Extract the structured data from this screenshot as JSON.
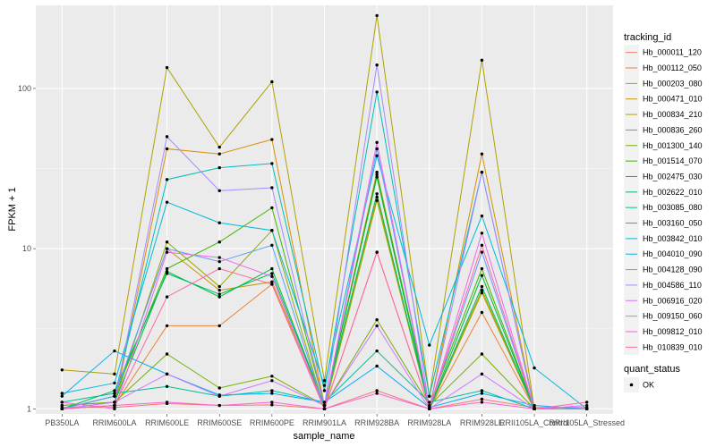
{
  "chart_data": {
    "type": "line",
    "xlabel": "sample_name",
    "ylabel": "FPKM + 1",
    "y_scale": "log10",
    "ylim": [
      0.93,
      330
    ],
    "y_ticks": [
      {
        "value": 1,
        "label": "1"
      },
      {
        "value": 10,
        "label": "10"
      },
      {
        "value": 100,
        "label": "100"
      }
    ],
    "categories": [
      "PB350LA",
      "RRIM600LA",
      "RRIM600LE",
      "RRIM600SE",
      "RRIM600PE",
      "RRIM901LA",
      "RRIM928BA",
      "RRIM928LA",
      "RRIM928LE",
      "RRII105LA_Control",
      "RRII105LA_Stressed"
    ],
    "legend_title": "tracking_id",
    "shape_legend_title": "quant_status",
    "shape_legend_item": "OK",
    "panel_background": "#ebebeb",
    "grid": true,
    "point_color": "#000000",
    "series": [
      {
        "name": "Hb_000011_120",
        "color": "#F8766D",
        "values": [
          1.02,
          1.02,
          1.08,
          1.05,
          1.06,
          1.0,
          1.3,
          1.0,
          1.15,
          1.02,
          1.02
        ]
      },
      {
        "name": "Hb_000112_050",
        "color": "#EC8239",
        "values": [
          1.0,
          1.05,
          3.3,
          3.3,
          6.0,
          1.0,
          9.5,
          1.0,
          4.0,
          1.0,
          1.0
        ]
      },
      {
        "name": "Hb_000203_080",
        "color": "#DB8E00",
        "values": [
          1.0,
          1.05,
          42,
          39,
          48,
          1.05,
          30,
          1.0,
          39,
          1.0,
          1.0
        ]
      },
      {
        "name": "Hb_000471_010",
        "color": "#C79800",
        "values": [
          1.0,
          1.2,
          10,
          5.5,
          6.2,
          1.05,
          21,
          1.0,
          5.3,
          1.0,
          1.0
        ]
      },
      {
        "name": "Hb_000834_210",
        "color": "#AFA100",
        "values": [
          1.75,
          1.65,
          135,
          43,
          110,
          1.5,
          285,
          1.2,
          150,
          1.0,
          1.0
        ]
      },
      {
        "name": "Hb_000836_260",
        "color": "#93AA00",
        "values": [
          1.05,
          1.1,
          11,
          5.8,
          13,
          1.0,
          20,
          1.0,
          5.5,
          1.0,
          1.0
        ]
      },
      {
        "name": "Hb_001300_140",
        "color": "#72B000",
        "values": [
          1.05,
          1.1,
          2.2,
          1.35,
          1.6,
          1.05,
          3.6,
          1.05,
          2.2,
          1.0,
          1.0
        ]
      },
      {
        "name": "Hb_001514_070",
        "color": "#3FB500",
        "values": [
          1.0,
          1.2,
          7.5,
          11,
          18,
          1.05,
          29,
          1.05,
          7.5,
          1.0,
          1.0
        ]
      },
      {
        "name": "Hb_002475_030",
        "color": "#00B938",
        "values": [
          1.0,
          1.1,
          7.2,
          5.0,
          7.5,
          1.05,
          28,
          1.0,
          6.8,
          1.0,
          1.0
        ]
      },
      {
        "name": "Hb_002622_010",
        "color": "#00BC6B",
        "values": [
          1.0,
          1.3,
          7.0,
          5.2,
          7.0,
          1.05,
          22,
          1.0,
          5.8,
          1.0,
          1.0
        ]
      },
      {
        "name": "Hb_003085_080",
        "color": "#00BD94",
        "values": [
          1.1,
          1.25,
          1.38,
          1.2,
          1.3,
          1.1,
          2.3,
          1.1,
          1.3,
          1.0,
          1.0
        ]
      },
      {
        "name": "Hb_003160_050",
        "color": "#00BDB8",
        "values": [
          1.0,
          1.2,
          27,
          32,
          34,
          1.3,
          95,
          1.2,
          30,
          1.0,
          1.0
        ]
      },
      {
        "name": "Hb_003842_010",
        "color": "#00B9D8",
        "values": [
          1.25,
          1.45,
          19.5,
          14.5,
          13,
          1.4,
          38,
          2.5,
          16,
          1.8,
          1.0
        ]
      },
      {
        "name": "Hb_004010_090",
        "color": "#00B0F6",
        "values": [
          1.2,
          2.3,
          1.65,
          1.22,
          1.25,
          1.1,
          1.85,
          1.02,
          1.25,
          1.05,
          1.0
        ]
      },
      {
        "name": "Hb_004128_090",
        "color": "#619CFF",
        "values": [
          1.0,
          1.2,
          10,
          8.3,
          10.5,
          1.0,
          42,
          1.0,
          9.5,
          1.0,
          1.0
        ]
      },
      {
        "name": "Hb_004586_110",
        "color": "#A58AFF",
        "values": [
          1.0,
          1.1,
          50,
          23,
          24,
          1.05,
          140,
          1.0,
          30,
          1.0,
          1.0
        ]
      },
      {
        "name": "Hb_006916_020",
        "color": "#D277FF",
        "values": [
          1.0,
          1.1,
          1.65,
          1.2,
          1.5,
          1.05,
          3.3,
          1.0,
          1.65,
          1.0,
          1.0
        ]
      },
      {
        "name": "Hb_009150_060",
        "color": "#ED68ED",
        "values": [
          1.1,
          1.0,
          9.5,
          8.8,
          6.7,
          1.0,
          46,
          1.0,
          12.5,
          1.0,
          1.05
        ]
      },
      {
        "name": "Hb_009812_010",
        "color": "#FB61D7",
        "values": [
          1.0,
          1.05,
          1.1,
          1.05,
          1.1,
          1.0,
          1.25,
          1.0,
          1.1,
          1.0,
          1.0
        ]
      },
      {
        "name": "Hb_010839_010",
        "color": "#FF67A4",
        "values": [
          1.0,
          1.05,
          5.0,
          7.5,
          6.0,
          1.0,
          9.5,
          1.0,
          10.5,
          1.0,
          1.1
        ]
      }
    ]
  }
}
